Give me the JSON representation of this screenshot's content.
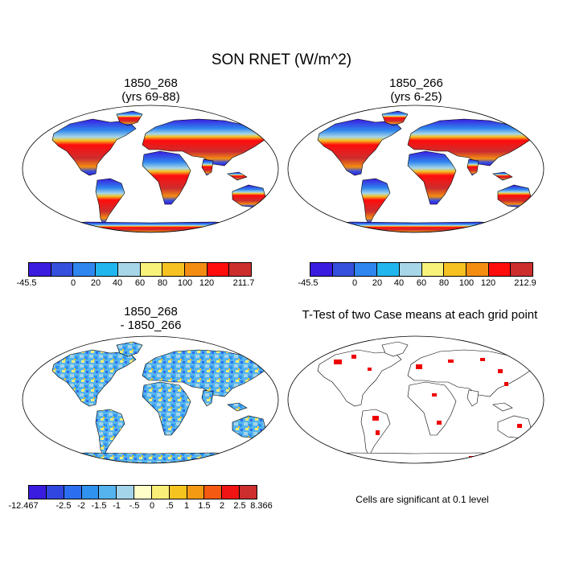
{
  "figure": {
    "title": "SON RNET (W/m^2)"
  },
  "panels": {
    "top_left": {
      "title": "1850_268\n(yrs 69-88)",
      "colorbar": {
        "min_label": "-45.5",
        "max_label": "211.7",
        "ticks": [
          "0",
          "20",
          "40",
          "60",
          "80",
          "100",
          "120"
        ],
        "colors": [
          "#3a1ce0",
          "#3550dc",
          "#2f86ee",
          "#22b6ee",
          "#a7d6e8",
          "#f9f27a",
          "#f5c222",
          "#f38d12",
          "#ff0c0c",
          "#cc2e2e"
        ]
      }
    },
    "top_right": {
      "title": "1850_266\n(yrs 6-25)",
      "colorbar": {
        "min_label": "-45.5",
        "max_label": "212.9",
        "ticks": [
          "0",
          "20",
          "40",
          "60",
          "80",
          "100",
          "120"
        ],
        "colors": [
          "#3a1ce0",
          "#3550dc",
          "#2f86ee",
          "#22b6ee",
          "#a7d6e8",
          "#f9f27a",
          "#f5c222",
          "#f38d12",
          "#ff0c0c",
          "#cc2e2e"
        ]
      }
    },
    "bottom_left": {
      "title": "1850_268\n- 1850_266",
      "colorbar": {
        "min_label": "-12.467",
        "max_label": "8.366",
        "ticks": [
          "-2.5",
          "-2",
          "-1.5",
          "-1",
          "-.5",
          "0",
          ".5",
          "1",
          "1.5",
          "2",
          "2.5"
        ],
        "colors": [
          "#3a1ce0",
          "#3146e0",
          "#2c6ef0",
          "#2f92ee",
          "#55b4ee",
          "#a3d4ea",
          "#fffdc8",
          "#f9ef78",
          "#f6c41f",
          "#f39a12",
          "#f55a12",
          "#f01414",
          "#cc2e2e"
        ]
      }
    },
    "bottom_right": {
      "title": "T-Test of two Case means at each grid point",
      "note": "Cells are significant at 0.1 level"
    }
  }
}
